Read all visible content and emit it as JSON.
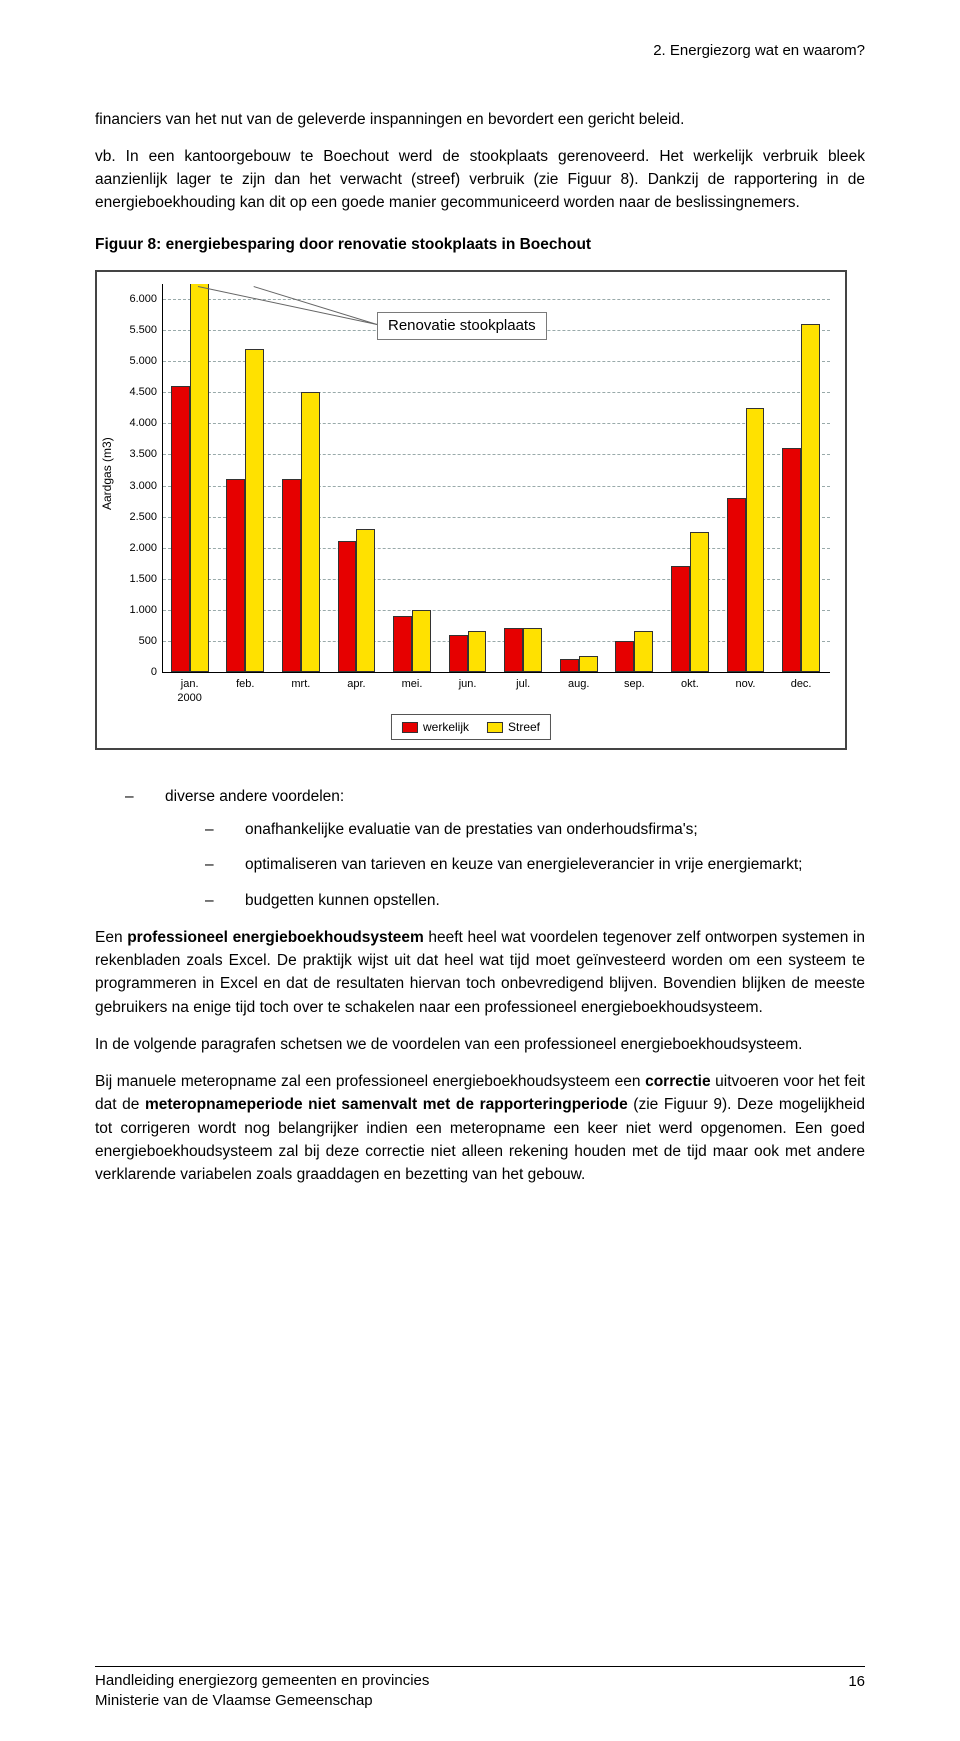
{
  "header": {
    "section_title": "2. Energiezorg wat en waarom?"
  },
  "paragraphs": {
    "p1": "financiers van het nut van de geleverde inspanningen en bevordert een gericht beleid.",
    "p1_ex": "vb. In een kantoorgebouw te Boechout werd de stookplaats gerenoveerd. Het werkelijk verbruik bleek aanzienlijk lager te zijn dan het verwacht (streef) verbruik (zie Figuur 8). Dankzij de rapportering in de energieboekhouding kan dit op een goede manier gecommuniceerd worden naar de beslissingnemers.",
    "fig_caption": "Figuur 8: energiebesparing door renovatie stookplaats in Boechout",
    "advantages_intro": "diverse andere voordelen:",
    "adv_items": [
      "onafhankelijke evaluatie van de prestaties van onderhoudsfirma's;",
      "optimaliseren van tarieven en keuze van energieleverancier in vrije energiemarkt;",
      "budgetten kunnen opstellen."
    ],
    "p2a": "Een ",
    "p2b": "professioneel energieboekhoudsysteem",
    "p2c": " heeft heel wat voordelen tegenover zelf ontworpen systemen in rekenbladen zoals Excel. De praktijk wijst uit dat heel wat tijd moet geïnvesteerd worden om een systeem te programmeren in Excel en dat de resultaten hiervan toch onbevredigend blijven. Bovendien blijken de meeste gebruikers na enige tijd toch over te schakelen naar een professioneel energieboekhoudsysteem.",
    "p3": "In de volgende paragrafen schetsen we de voordelen van een professioneel energieboekhoudsysteem.",
    "p4a": "Bij manuele meteropname zal een professioneel energieboekhoudsysteem een ",
    "p4b": "correctie",
    "p4c": " uitvoeren voor het feit dat de ",
    "p4d": "meteropnameperiode niet samenvalt met de rapporteringperiode",
    "p4e": " (zie Figuur 9). Deze mogelijkheid tot corrigeren wordt nog belangrijker indien een meteropname een keer niet werd opgenomen. Een goed energieboekhoudsysteem zal bij deze correctie niet alleen rekening houden met de tijd maar ook met andere verklarende variabelen zoals graaddagen en bezetting van het gebouw."
  },
  "chart": {
    "type": "bar",
    "y_axis_title": "Aardgas (m3)",
    "callout_label": "Renovatie stookplaats",
    "ylim": [
      0,
      6250
    ],
    "yticks": [
      0,
      500,
      1000,
      1500,
      2000,
      2500,
      3000,
      3500,
      4000,
      4500,
      5000,
      5500,
      6000
    ],
    "ytick_labels": [
      "0",
      "500",
      "1.000",
      "1.500",
      "2.000",
      "2.500",
      "3.000",
      "3.500",
      "4.000",
      "4.500",
      "5.000",
      "5.500",
      "6.000"
    ],
    "categories": [
      "jan.",
      "feb.",
      "mrt.",
      "apr.",
      "mei.",
      "jun.",
      "jul.",
      "aug.",
      "sep.",
      "okt.",
      "nov.",
      "dec."
    ],
    "x_sub_label": "2000",
    "series": [
      {
        "name": "werkelijk",
        "color": "#e60000",
        "values": [
          4600,
          3100,
          3100,
          2100,
          900,
          600,
          700,
          200,
          500,
          1700,
          2800,
          3600
        ]
      },
      {
        "name": "Streef",
        "color": "#ffe100",
        "values": [
          6300,
          5200,
          4500,
          2300,
          1000,
          650,
          700,
          250,
          650,
          2250,
          4250,
          5600
        ]
      }
    ],
    "legend_labels": [
      "werkelijk",
      "Streef"
    ],
    "bar_border_color": "#333333",
    "grid_color": "#99aaaa",
    "background_color": "#ffffff",
    "bar_group_gap": 0.28,
    "bar_width_rel": 0.34
  },
  "footer": {
    "line1": "Handleiding energiezorg gemeenten en provincies",
    "line2": "Ministerie van de Vlaamse Gemeenschap",
    "page_number": "16"
  }
}
